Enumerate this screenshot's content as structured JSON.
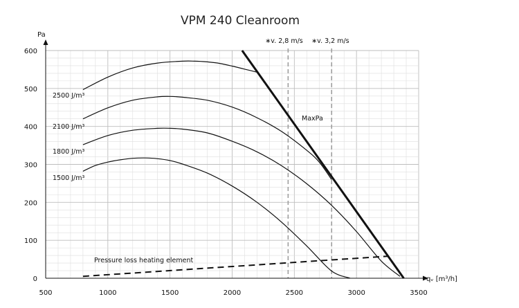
{
  "chart_data": {
    "type": "line",
    "title": "VPM 240 Cleanroom",
    "ylabel": "Pa",
    "xlabel": "qᵥ [m³/h]",
    "xlim": [
      500,
      3500
    ],
    "ylim": [
      0,
      600
    ],
    "x_ticks": [
      "500",
      "1000",
      "1500",
      "2000",
      "2500",
      "3000",
      "3500"
    ],
    "y_ticks": [
      "0",
      "100",
      "200",
      "300",
      "400",
      "500",
      "600"
    ],
    "grid": true,
    "series": [
      {
        "name": "2500 J/m³",
        "style": "solid",
        "x": [
          800,
          1000,
          1200,
          1400,
          1600,
          1700,
          1800,
          1900,
          2000,
          2100,
          2200
        ],
        "y": [
          497,
          530,
          554,
          567,
          572,
          572,
          570,
          566,
          559,
          551,
          543
        ]
      },
      {
        "name": "2100 J/m³",
        "style": "solid",
        "x": [
          800,
          1000,
          1200,
          1400,
          1500,
          1600,
          1800,
          2000,
          2200,
          2400,
          2600,
          2700,
          2800
        ],
        "y": [
          420,
          449,
          469,
          478,
          479,
          477,
          469,
          451,
          423,
          386,
          337,
          306,
          260
        ]
      },
      {
        "name": "1800 J/m³",
        "style": "solid",
        "x": [
          800,
          1000,
          1200,
          1400,
          1500,
          1600,
          1800,
          2000,
          2200,
          2400,
          2600,
          2800,
          3000,
          3200,
          3350
        ],
        "y": [
          352,
          376,
          390,
          395,
          395,
          393,
          383,
          361,
          333,
          296,
          249,
          192,
          123,
          45,
          5
        ]
      },
      {
        "name": "1500 J/m³",
        "style": "solid",
        "x": [
          800,
          900,
          1000,
          1100,
          1200,
          1300,
          1400,
          1500,
          1600,
          1800,
          2000,
          2200,
          2400,
          2600,
          2800,
          2950
        ],
        "y": [
          282,
          297,
          306,
          312,
          316,
          317,
          315,
          310,
          301,
          277,
          243,
          200,
          147,
          85,
          19,
          0
        ]
      },
      {
        "name": "MaxPa",
        "style": "bold",
        "x": [
          2080,
          3380
        ],
        "y": [
          600,
          0
        ]
      },
      {
        "name": "Pressure loss heating element",
        "style": "dashed",
        "x": [
          800,
          3250
        ],
        "y": [
          5,
          58
        ]
      }
    ],
    "reference_lines": [
      {
        "label": "∗v. 2,8 m/s",
        "x": 2450
      },
      {
        "label": "∗v. 3,2 m/s",
        "x": 2800
      }
    ],
    "colors": {
      "curve": "#111111",
      "grid_major": "#bdbdbd",
      "grid_minor": "#dedede",
      "reference": "#9e9e9e"
    }
  }
}
